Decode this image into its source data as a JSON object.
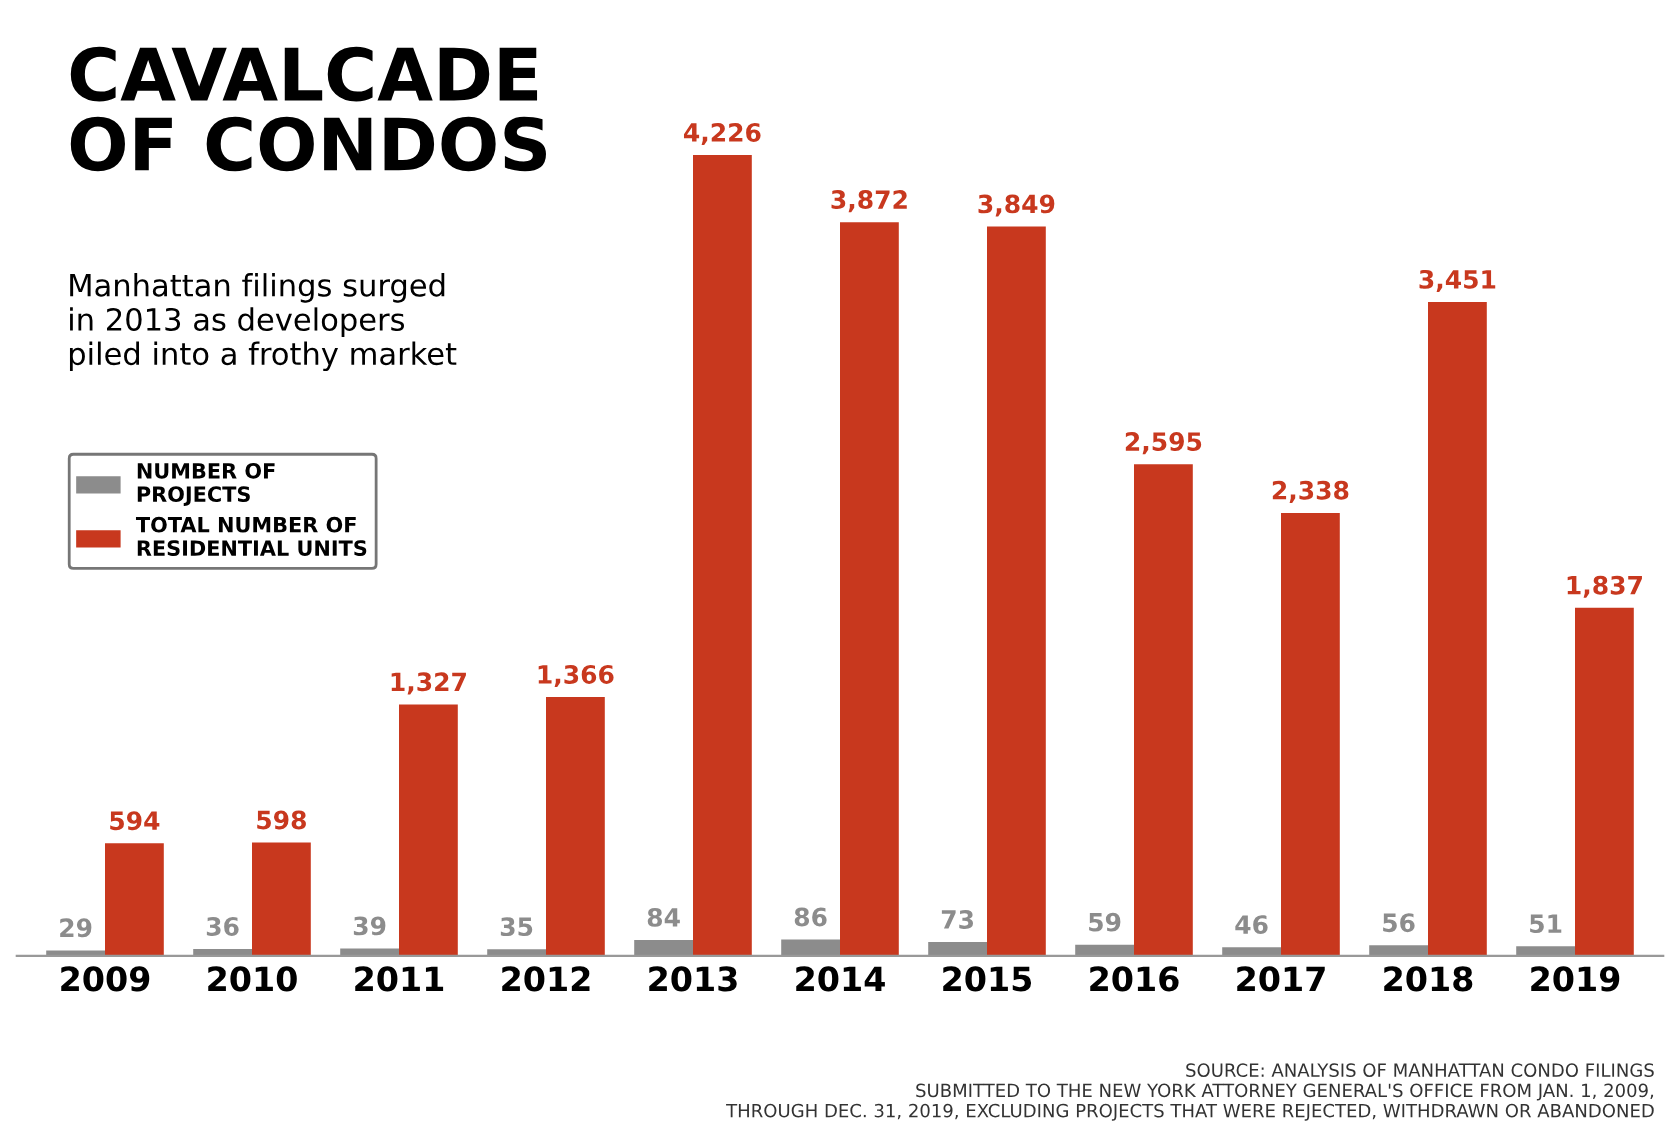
{
  "chart_data": {
    "type": "bar",
    "title": "CAVALCADE\nOF CONDOS",
    "subtitle": "Manhattan filings surged\nin 2013 as developers\npiled into a frothy market",
    "categories": [
      "2009",
      "2010",
      "2011",
      "2012",
      "2013",
      "2014",
      "2015",
      "2016",
      "2017",
      "2018",
      "2019"
    ],
    "series": [
      {
        "name": "NUMBER OF\nPROJECTS",
        "color": "#8c8c8c",
        "values": [
          29,
          36,
          39,
          35,
          84,
          86,
          73,
          59,
          46,
          56,
          51
        ],
        "value_labels": [
          "29",
          "36",
          "39",
          "35",
          "84",
          "86",
          "73",
          "59",
          "46",
          "56",
          "51"
        ]
      },
      {
        "name": "TOTAL NUMBER OF\nRESIDENTIAL UNITS",
        "color": "#c8381e",
        "values": [
          594,
          598,
          1327,
          1366,
          4226,
          3872,
          3849,
          2595,
          2338,
          3451,
          1837
        ],
        "value_labels": [
          "594",
          "598",
          "1,327",
          "1,366",
          "4,226",
          "3,872",
          "3,849",
          "2,595",
          "2,338",
          "3,451",
          "1,837"
        ]
      }
    ],
    "tick_labels": "x",
    "legend": "top left",
    "grid": false,
    "annotations": [
      "SOURCE: ANALYSIS OF MANHATTAN CONDO FILINGS\nSUBMITTED TO THE NEW YORK ATTORNEY GENERAL'S OFFICE FROM JAN. 1, 2009,\nTHROUGH DEC. 31, 2019, EXCLUDING PROJECTS THAT WERE REJECTED, WITHDRAWN OR ABANDONED"
    ]
  }
}
